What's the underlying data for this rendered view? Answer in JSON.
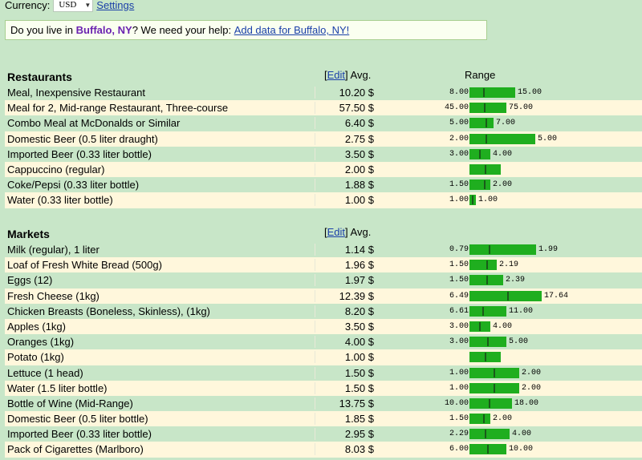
{
  "topbar": {
    "currency_label": "Currency:",
    "currency_value": "USD",
    "settings_link": "Settings"
  },
  "notice": {
    "prefix": "Do you live in ",
    "city": "Buffalo, NY",
    "suffix": "? We need your help:",
    "link": "Add data for Buffalo, NY!"
  },
  "colors": {
    "bar": "#1fae1f",
    "row_alt": "#fff7dc",
    "background": "#c8e6c8",
    "city": "#6a22b0"
  },
  "restaurants": {
    "title": "Restaurants",
    "edit_link": "Edit",
    "avg_label": "Avg.",
    "range_label": "Range",
    "items": [
      {
        "name": "Meal, Inexpensive Restaurant",
        "avg": "10.20 $",
        "low": "8.00",
        "high": "15.00",
        "lo_v": 8.0,
        "hi_v": 15.0,
        "avg_v": 10.2
      },
      {
        "name": "Meal for 2, Mid-range Restaurant, Three-course",
        "avg": "57.50 $",
        "low": "45.00",
        "high": "75.00",
        "lo_v": 45.0,
        "hi_v": 75.0,
        "avg_v": 57.5
      },
      {
        "name": "Combo Meal at McDonalds or Similar",
        "avg": "6.40 $",
        "low": "5.00",
        "high": "7.00",
        "lo_v": 5.0,
        "hi_v": 7.0,
        "avg_v": 6.4
      },
      {
        "name": "Domestic Beer (0.5 liter draught)",
        "avg": "2.75 $",
        "low": "2.00",
        "high": "5.00",
        "lo_v": 2.0,
        "hi_v": 5.0,
        "avg_v": 2.75
      },
      {
        "name": "Imported Beer (0.33 liter bottle)",
        "avg": "3.50 $",
        "low": "3.00",
        "high": "4.00",
        "lo_v": 3.0,
        "hi_v": 4.0,
        "avg_v": 3.5
      },
      {
        "name": "Cappuccino (regular)",
        "avg": "2.00 $",
        "low": "",
        "high": "",
        "lo_v": null,
        "hi_v": null,
        "avg_v": 2.0
      },
      {
        "name": "Coke/Pepsi (0.33 liter bottle)",
        "avg": "1.88 $",
        "low": "1.50",
        "high": "2.00",
        "lo_v": 1.5,
        "hi_v": 2.0,
        "avg_v": 1.88
      },
      {
        "name": "Water (0.33 liter bottle)",
        "avg": "1.00 $",
        "low": "1.00",
        "high": "1.00",
        "lo_v": 1.0,
        "hi_v": 1.0,
        "avg_v": 1.0
      }
    ]
  },
  "markets": {
    "title": "Markets",
    "edit_link": "Edit",
    "avg_label": "Avg.",
    "items": [
      {
        "name": "Milk (regular), 1 liter",
        "avg": "1.14 $",
        "low": "0.79",
        "high": "1.99",
        "lo_v": 0.79,
        "hi_v": 1.99,
        "avg_v": 1.14
      },
      {
        "name": "Loaf of Fresh White Bread (500g)",
        "avg": "1.96 $",
        "low": "1.50",
        "high": "2.19",
        "lo_v": 1.5,
        "hi_v": 2.19,
        "avg_v": 1.96
      },
      {
        "name": "Eggs (12)",
        "avg": "1.97 $",
        "low": "1.50",
        "high": "2.39",
        "lo_v": 1.5,
        "hi_v": 2.39,
        "avg_v": 1.97
      },
      {
        "name": "Fresh Cheese (1kg)",
        "avg": "12.39 $",
        "low": "6.49",
        "high": "17.64",
        "lo_v": 6.49,
        "hi_v": 17.64,
        "avg_v": 12.39
      },
      {
        "name": "Chicken Breasts (Boneless, Skinless), (1kg)",
        "avg": "8.20 $",
        "low": "6.61",
        "high": "11.00",
        "lo_v": 6.61,
        "hi_v": 11.0,
        "avg_v": 8.2
      },
      {
        "name": "Apples (1kg)",
        "avg": "3.50 $",
        "low": "3.00",
        "high": "4.00",
        "lo_v": 3.0,
        "hi_v": 4.0,
        "avg_v": 3.5
      },
      {
        "name": "Oranges (1kg)",
        "avg": "4.00 $",
        "low": "3.00",
        "high": "5.00",
        "lo_v": 3.0,
        "hi_v": 5.0,
        "avg_v": 4.0
      },
      {
        "name": "Potato (1kg)",
        "avg": "1.00 $",
        "low": "",
        "high": "",
        "lo_v": null,
        "hi_v": null,
        "avg_v": 1.0
      },
      {
        "name": "Lettuce (1 head)",
        "avg": "1.50 $",
        "low": "1.00",
        "high": "2.00",
        "lo_v": 1.0,
        "hi_v": 2.0,
        "avg_v": 1.5
      },
      {
        "name": "Water (1.5 liter bottle)",
        "avg": "1.50 $",
        "low": "1.00",
        "high": "2.00",
        "lo_v": 1.0,
        "hi_v": 2.0,
        "avg_v": 1.5
      },
      {
        "name": "Bottle of Wine (Mid-Range)",
        "avg": "13.75 $",
        "low": "10.00",
        "high": "18.00",
        "lo_v": 10.0,
        "hi_v": 18.0,
        "avg_v": 13.75
      },
      {
        "name": "Domestic Beer (0.5 liter bottle)",
        "avg": "1.85 $",
        "low": "1.50",
        "high": "2.00",
        "lo_v": 1.5,
        "hi_v": 2.0,
        "avg_v": 1.85
      },
      {
        "name": "Imported Beer (0.33 liter bottle)",
        "avg": "2.95 $",
        "low": "2.29",
        "high": "4.00",
        "lo_v": 2.29,
        "hi_v": 4.0,
        "avg_v": 2.95
      },
      {
        "name": "Pack of Cigarettes (Marlboro)",
        "avg": "8.03 $",
        "low": "6.00",
        "high": "10.00",
        "lo_v": 6.0,
        "hi_v": 10.0,
        "avg_v": 8.03
      }
    ]
  }
}
